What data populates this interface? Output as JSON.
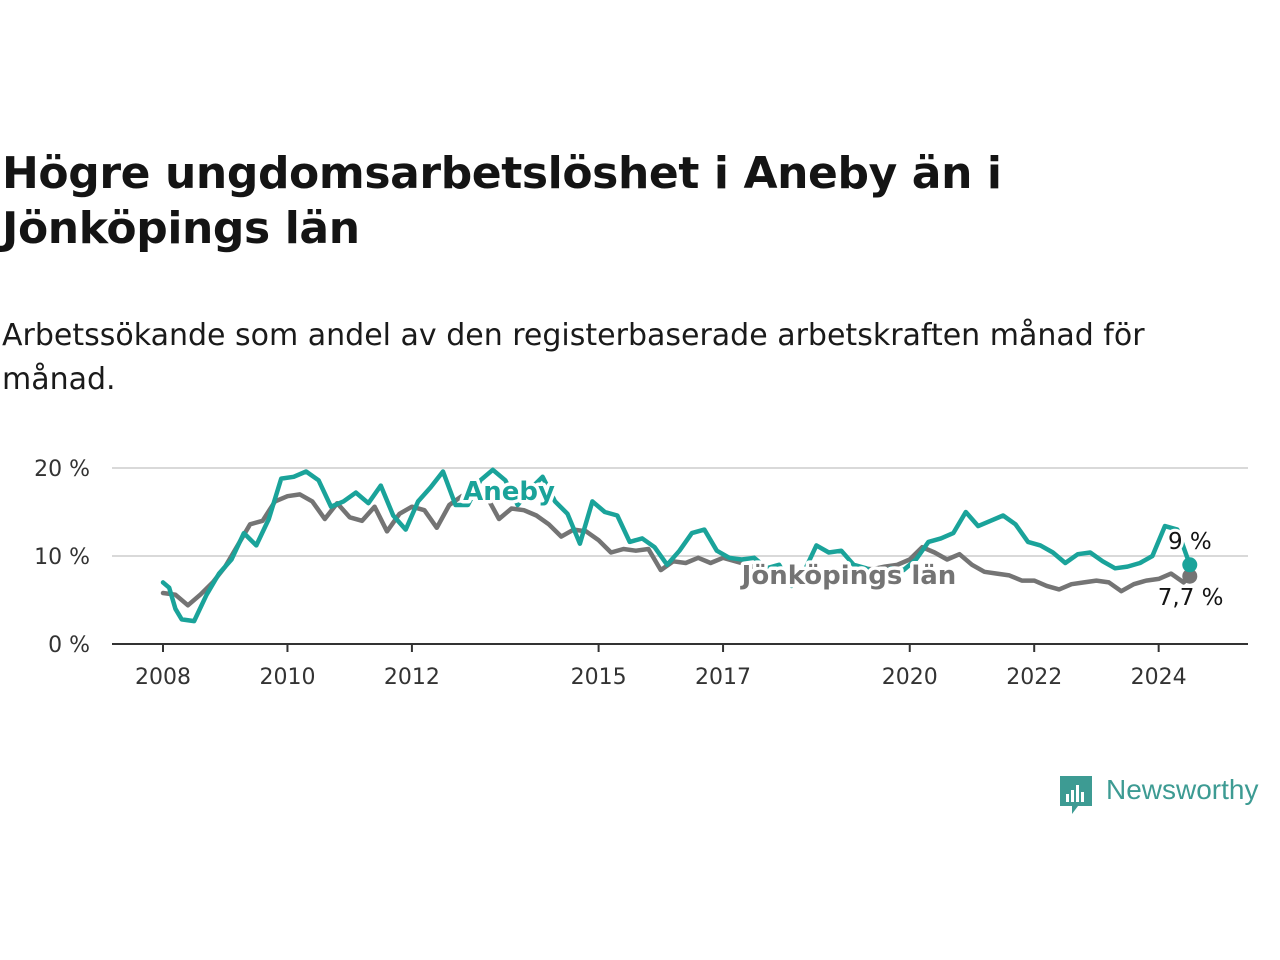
{
  "title": "Högre ungdomsarbetslöshet i Aneby än i Jönköpings län",
  "subtitle": "Arbetssökande som andel av den registerbaserade arbetskraften månad för månad.",
  "colors": {
    "aneby": "#1aa39a",
    "lan": "#747474",
    "grid": "#d9d9d9",
    "axis": "#333333"
  },
  "brand": {
    "name": "Newsworthy",
    "icon": "bar-chart-speech-bubble-icon"
  },
  "chart_data": {
    "type": "line",
    "title": "Högre ungdomsarbetslöshet i Aneby än i Jönköpings län",
    "xlabel": "",
    "ylabel": "",
    "xlim": [
      2008,
      2024.6
    ],
    "ylim": [
      0,
      20
    ],
    "x_ticks": [
      2008,
      2010,
      2012,
      2015,
      2017,
      2020,
      2022,
      2024
    ],
    "x_tick_labels": [
      "2008",
      "2010",
      "2012",
      "2015",
      "2017",
      "2020",
      "2022",
      "2024"
    ],
    "y_ticks": [
      0,
      10,
      20
    ],
    "y_tick_labels": [
      "0 %",
      "10 %",
      "20 %"
    ],
    "grid": true,
    "series": [
      {
        "name": "Jönköpings län",
        "label": "Jönköpings län",
        "end_label": "7,7 %",
        "end_value": 7.7,
        "points": [
          [
            2008.0,
            5.8
          ],
          [
            2008.2,
            5.6
          ],
          [
            2008.4,
            4.4
          ],
          [
            2008.6,
            5.6
          ],
          [
            2008.8,
            7.0
          ],
          [
            2009.0,
            8.8
          ],
          [
            2009.2,
            11.2
          ],
          [
            2009.4,
            13.6
          ],
          [
            2009.6,
            14.0
          ],
          [
            2009.8,
            16.2
          ],
          [
            2010.0,
            16.8
          ],
          [
            2010.2,
            17.0
          ],
          [
            2010.4,
            16.2
          ],
          [
            2010.6,
            14.2
          ],
          [
            2010.8,
            16.0
          ],
          [
            2011.0,
            14.4
          ],
          [
            2011.2,
            14.0
          ],
          [
            2011.4,
            15.6
          ],
          [
            2011.6,
            12.8
          ],
          [
            2011.8,
            14.8
          ],
          [
            2012.0,
            15.6
          ],
          [
            2012.2,
            15.2
          ],
          [
            2012.4,
            13.2
          ],
          [
            2012.6,
            15.8
          ],
          [
            2012.8,
            16.8
          ],
          [
            2013.0,
            17.4
          ],
          [
            2013.2,
            16.8
          ],
          [
            2013.4,
            14.2
          ],
          [
            2013.6,
            15.4
          ],
          [
            2013.8,
            15.2
          ],
          [
            2014.0,
            14.6
          ],
          [
            2014.2,
            13.6
          ],
          [
            2014.4,
            12.2
          ],
          [
            2014.6,
            13.0
          ],
          [
            2014.8,
            12.8
          ],
          [
            2015.0,
            11.8
          ],
          [
            2015.2,
            10.4
          ],
          [
            2015.4,
            10.8
          ],
          [
            2015.6,
            10.6
          ],
          [
            2015.8,
            10.8
          ],
          [
            2016.0,
            8.4
          ],
          [
            2016.2,
            9.4
          ],
          [
            2016.4,
            9.2
          ],
          [
            2016.6,
            9.8
          ],
          [
            2016.8,
            9.2
          ],
          [
            2017.0,
            9.8
          ],
          [
            2017.2,
            9.4
          ],
          [
            2017.4,
            9.0
          ],
          [
            2017.6,
            8.4
          ],
          [
            2017.8,
            8.2
          ],
          [
            2018.0,
            7.8
          ],
          [
            2018.2,
            7.6
          ],
          [
            2018.4,
            7.9
          ],
          [
            2018.6,
            7.8
          ],
          [
            2018.8,
            8.2
          ],
          [
            2019.0,
            8.4
          ],
          [
            2019.2,
            8.6
          ],
          [
            2019.4,
            8.5
          ],
          [
            2019.6,
            8.8
          ],
          [
            2019.8,
            9.0
          ],
          [
            2020.0,
            9.6
          ],
          [
            2020.2,
            11.0
          ],
          [
            2020.4,
            10.4
          ],
          [
            2020.6,
            9.6
          ],
          [
            2020.8,
            10.2
          ],
          [
            2021.0,
            9.0
          ],
          [
            2021.2,
            8.2
          ],
          [
            2021.4,
            8.0
          ],
          [
            2021.6,
            7.8
          ],
          [
            2021.8,
            7.2
          ],
          [
            2022.0,
            7.2
          ],
          [
            2022.2,
            6.6
          ],
          [
            2022.4,
            6.2
          ],
          [
            2022.6,
            6.8
          ],
          [
            2022.8,
            7.0
          ],
          [
            2023.0,
            7.2
          ],
          [
            2023.2,
            7.0
          ],
          [
            2023.4,
            6.0
          ],
          [
            2023.6,
            6.8
          ],
          [
            2023.8,
            7.2
          ],
          [
            2024.0,
            7.4
          ],
          [
            2024.2,
            8.0
          ],
          [
            2024.4,
            7.0
          ],
          [
            2024.5,
            7.7
          ]
        ]
      },
      {
        "name": "Aneby",
        "label": "Aneby",
        "end_label": "9 %",
        "end_value": 9,
        "points": [
          [
            2008.0,
            7.0
          ],
          [
            2008.1,
            6.4
          ],
          [
            2008.2,
            4.0
          ],
          [
            2008.3,
            2.8
          ],
          [
            2008.5,
            2.6
          ],
          [
            2008.7,
            5.6
          ],
          [
            2008.9,
            8.0
          ],
          [
            2009.1,
            9.6
          ],
          [
            2009.3,
            12.6
          ],
          [
            2009.5,
            11.2
          ],
          [
            2009.7,
            14.2
          ],
          [
            2009.9,
            18.8
          ],
          [
            2010.1,
            19.0
          ],
          [
            2010.3,
            19.6
          ],
          [
            2010.5,
            18.6
          ],
          [
            2010.7,
            15.6
          ],
          [
            2010.9,
            16.2
          ],
          [
            2011.1,
            17.2
          ],
          [
            2011.3,
            16.0
          ],
          [
            2011.5,
            18.0
          ],
          [
            2011.7,
            14.6
          ],
          [
            2011.9,
            13.0
          ],
          [
            2012.1,
            16.2
          ],
          [
            2012.3,
            17.8
          ],
          [
            2012.5,
            19.6
          ],
          [
            2012.7,
            15.8
          ],
          [
            2012.9,
            15.8
          ],
          [
            2013.1,
            18.6
          ],
          [
            2013.3,
            19.8
          ],
          [
            2013.5,
            18.6
          ],
          [
            2013.7,
            15.8
          ],
          [
            2013.9,
            17.6
          ],
          [
            2014.1,
            19.0
          ],
          [
            2014.3,
            16.2
          ],
          [
            2014.5,
            14.8
          ],
          [
            2014.7,
            11.4
          ],
          [
            2014.9,
            16.2
          ],
          [
            2015.1,
            15.0
          ],
          [
            2015.3,
            14.6
          ],
          [
            2015.5,
            11.6
          ],
          [
            2015.7,
            12.0
          ],
          [
            2015.9,
            11.0
          ],
          [
            2016.1,
            9.0
          ],
          [
            2016.3,
            10.6
          ],
          [
            2016.5,
            12.6
          ],
          [
            2016.7,
            13.0
          ],
          [
            2016.9,
            10.6
          ],
          [
            2017.1,
            9.8
          ],
          [
            2017.3,
            9.6
          ],
          [
            2017.5,
            9.8
          ],
          [
            2017.7,
            8.6
          ],
          [
            2017.9,
            9.0
          ],
          [
            2018.1,
            6.6
          ],
          [
            2018.3,
            8.2
          ],
          [
            2018.5,
            11.2
          ],
          [
            2018.7,
            10.4
          ],
          [
            2018.9,
            10.6
          ],
          [
            2019.1,
            9.0
          ],
          [
            2019.3,
            8.6
          ],
          [
            2019.5,
            7.8
          ],
          [
            2019.7,
            8.6
          ],
          [
            2019.9,
            8.4
          ],
          [
            2020.1,
            9.6
          ],
          [
            2020.3,
            11.6
          ],
          [
            2020.5,
            12.0
          ],
          [
            2020.7,
            12.6
          ],
          [
            2020.9,
            15.0
          ],
          [
            2021.1,
            13.4
          ],
          [
            2021.3,
            14.0
          ],
          [
            2021.5,
            14.6
          ],
          [
            2021.7,
            13.6
          ],
          [
            2021.9,
            11.6
          ],
          [
            2022.1,
            11.2
          ],
          [
            2022.3,
            10.4
          ],
          [
            2022.5,
            9.2
          ],
          [
            2022.7,
            10.2
          ],
          [
            2022.9,
            10.4
          ],
          [
            2023.1,
            9.4
          ],
          [
            2023.3,
            8.6
          ],
          [
            2023.5,
            8.8
          ],
          [
            2023.7,
            9.2
          ],
          [
            2023.9,
            10.0
          ],
          [
            2024.1,
            13.4
          ],
          [
            2024.3,
            13.0
          ],
          [
            2024.5,
            9.0
          ]
        ]
      }
    ]
  }
}
